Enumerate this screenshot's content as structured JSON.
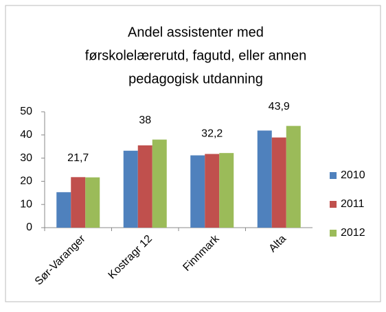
{
  "chart_data": {
    "type": "bar",
    "title": [
      "Andel assistenter med",
      "førskolelærerutd, fagutd, eller annen",
      "pedagogisk utdanning"
    ],
    "categories": [
      "Sør-Varanger",
      "Kostragr 12",
      "Finnmark",
      "Alta"
    ],
    "series": [
      {
        "name": "2010",
        "color": "#4f81bd",
        "values": [
          15.3,
          33.2,
          31.2,
          41.9
        ]
      },
      {
        "name": "2011",
        "color": "#c0504d",
        "values": [
          21.8,
          35.5,
          31.8,
          38.9
        ]
      },
      {
        "name": "2012",
        "color": "#9bbb59",
        "values": [
          21.7,
          38,
          32.2,
          43.9
        ],
        "value_labels": [
          "21,7",
          "38",
          "32,2",
          "43,9"
        ]
      }
    ],
    "ylim": [
      0,
      50
    ],
    "yticks": [
      0,
      10,
      20,
      30,
      40,
      50
    ],
    "grid": false,
    "legend": "right"
  }
}
